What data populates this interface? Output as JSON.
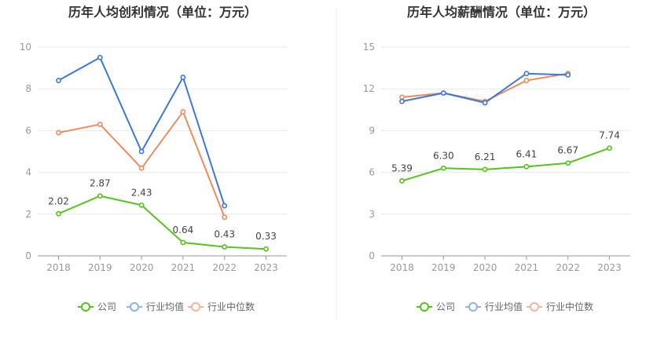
{
  "colors": {
    "company": "#52c41a",
    "industry_avg": "#3b78d8",
    "industry_median": "#ef8a5d",
    "legend_avg": "#8eb3ea",
    "legend_median": "#f6b59a",
    "grid": "#e6e9f0",
    "axis": "#999999",
    "divider": "#eeeeee"
  },
  "legend": {
    "company": "公司",
    "industry_avg": "行业均值",
    "industry_median": "行业中位数"
  },
  "chart_data": [
    {
      "type": "line",
      "title": "历年人均创利情况（单位：万元）",
      "x": [
        "2018",
        "2019",
        "2020",
        "2021",
        "2022",
        "2023"
      ],
      "ylim": [
        0,
        10
      ],
      "yticks": [
        0,
        2,
        4,
        6,
        8,
        10
      ],
      "grid": true,
      "legend_position": "bottom",
      "series": [
        {
          "name": "公司",
          "key": "company",
          "values": [
            2.02,
            2.87,
            2.43,
            0.64,
            0.43,
            0.33
          ],
          "labels": [
            "2.02",
            "2.87",
            "2.43",
            "0.64",
            "0.43",
            "0.33"
          ]
        },
        {
          "name": "行业均值",
          "key": "industry_avg",
          "values": [
            8.4,
            9.5,
            5.0,
            8.55,
            2.4,
            null
          ]
        },
        {
          "name": "行业中位数",
          "key": "industry_median",
          "values": [
            5.9,
            6.3,
            4.2,
            6.9,
            1.85,
            null
          ]
        }
      ]
    },
    {
      "type": "line",
      "title": "历年人均薪酬情况（单位：万元）",
      "x": [
        "2018",
        "2019",
        "2020",
        "2021",
        "2022",
        "2023"
      ],
      "ylim": [
        0,
        15
      ],
      "yticks": [
        0,
        3,
        6,
        9,
        12,
        15
      ],
      "grid": true,
      "legend_position": "bottom",
      "series": [
        {
          "name": "公司",
          "key": "company",
          "values": [
            5.39,
            6.3,
            6.21,
            6.41,
            6.67,
            7.74
          ],
          "labels": [
            "5.39",
            "6.30",
            "6.21",
            "6.41",
            "6.67",
            "7.74"
          ]
        },
        {
          "name": "行业均值",
          "key": "industry_avg",
          "values": [
            11.1,
            11.7,
            11.0,
            13.1,
            13.0,
            null
          ]
        },
        {
          "name": "行业中位数",
          "key": "industry_median",
          "values": [
            11.4,
            11.7,
            11.1,
            12.6,
            13.1,
            null
          ]
        }
      ]
    }
  ]
}
